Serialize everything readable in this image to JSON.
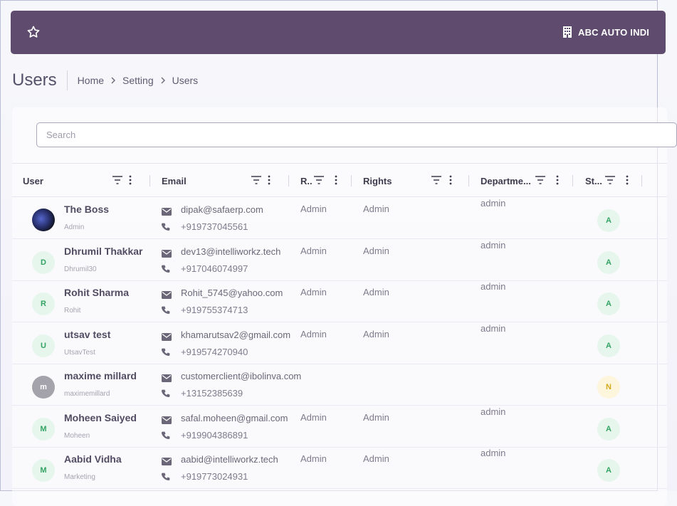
{
  "header": {
    "company": "ABC AUTO INDI",
    "colors": {
      "bar": "#5e4b6e"
    }
  },
  "page": {
    "title": "Users",
    "breadcrumb": [
      "Home",
      "Setting",
      "Users"
    ]
  },
  "search": {
    "placeholder": "Search",
    "value": ""
  },
  "table": {
    "columns": [
      "User",
      "Email",
      "R..",
      "Rights",
      "Departme...",
      "St..."
    ],
    "rows": [
      {
        "name": "The Boss",
        "login": "Admin",
        "initial": "",
        "avatar": "photo",
        "email": "dipak@safaerp.com",
        "phone": "+919737045561",
        "role": "Admin",
        "rights": "Admin",
        "department": "admin",
        "status": "A"
      },
      {
        "name": "Dhrumil Thakkar",
        "login": "Dhrumil30",
        "initial": "D",
        "avatar": "green",
        "email": "dev13@intelliworkz.tech",
        "phone": "+917046074997",
        "role": "Admin",
        "rights": "Admin",
        "department": "admin",
        "status": "A"
      },
      {
        "name": "Rohit Sharma",
        "login": "Rohit",
        "initial": "R",
        "avatar": "green",
        "email": "Rohit_5745@yahoo.com",
        "phone": "+919755374713",
        "role": "Admin",
        "rights": "Admin",
        "department": "admin",
        "status": "A"
      },
      {
        "name": "utsav test",
        "login": "UtsavTest",
        "initial": "U",
        "avatar": "green",
        "email": "khamarutsav2@gmail.com",
        "phone": "+919574270940",
        "role": "Admin",
        "rights": "Admin",
        "department": "admin",
        "status": "A"
      },
      {
        "name": "maxime millard",
        "login": "maximemillard",
        "initial": "m",
        "avatar": "gray",
        "email": "customerclient@ibolinva.com",
        "phone": "+13152385639",
        "role": "",
        "rights": "",
        "department": "",
        "status": "N"
      },
      {
        "name": "Moheen Saiyed",
        "login": "Moheen",
        "initial": "M",
        "avatar": "green",
        "email": "safal.moheen@gmail.com",
        "phone": "+919904386891",
        "role": "Admin",
        "rights": "Admin",
        "department": "admin",
        "status": "A"
      },
      {
        "name": "Aabid Vidha",
        "login": "Marketing",
        "initial": "M",
        "avatar": "green",
        "email": "aabid@intelliworkz.tech",
        "phone": "+919773024931",
        "role": "Admin",
        "rights": "Admin",
        "department": "admin",
        "status": "A"
      }
    ]
  }
}
